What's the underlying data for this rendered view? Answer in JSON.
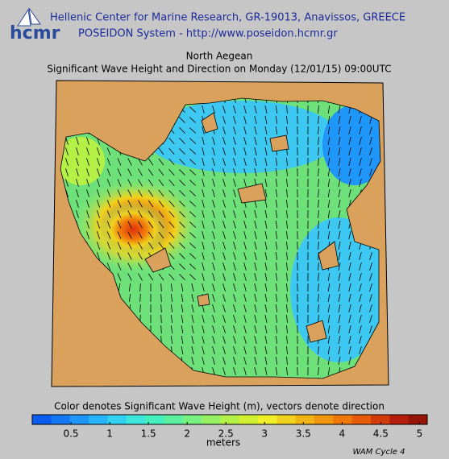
{
  "header": {
    "logo": "hcmr",
    "line1": "Hellenic Center for Marine Research, GR-19013, Anavissos, GREECE",
    "line2": "POSEIDON System - http://www.poseidon.hcmr.gr"
  },
  "map": {
    "title": "North Aegean",
    "subtitle": "Significant Wave Height and Direction on Monday (12/01/15) 09:00UTC"
  },
  "colorbar": {
    "label": "Color denotes Significant Wave Height (m), vectors denote direction",
    "range": [
      0,
      5.1
    ],
    "ticks": [
      0.5,
      1,
      1.5,
      2,
      2.5,
      3,
      3.5,
      4,
      4.5,
      5
    ],
    "unit": "meters",
    "colors": [
      "#0a5cf0",
      "#1478f5",
      "#1e96fa",
      "#28b4fa",
      "#32d2f0",
      "#3ce6dc",
      "#46f0be",
      "#5af0a0",
      "#78f082",
      "#96f064",
      "#b4f046",
      "#d2f032",
      "#f0f028",
      "#f0d21e",
      "#f0b414",
      "#f0960f",
      "#f0780a",
      "#e65a0a",
      "#d23c0a",
      "#b41e0a",
      "#961405"
    ]
  },
  "footer": {
    "model": "WAM Cycle 4"
  }
}
